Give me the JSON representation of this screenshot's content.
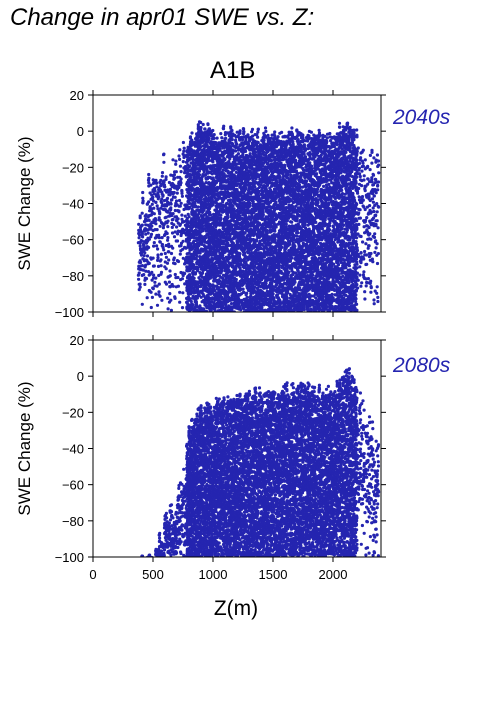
{
  "header": {
    "title": "Change in apr01 SWE vs. Z:",
    "scenario": "A1B"
  },
  "colors": {
    "points": "#2525b0",
    "label": "#2525b0"
  },
  "chart_data": [
    {
      "type": "scatter",
      "period_label": "2040s",
      "ylabel": "SWE Change (%)",
      "xlabel": "",
      "xlim": [
        0,
        2400
      ],
      "ylim": [
        -100,
        20
      ],
      "x_ticks": [
        0,
        500,
        1000,
        1500,
        2000
      ],
      "y_ticks": [
        20,
        0,
        -20,
        -40,
        -60,
        -80,
        -100
      ],
      "y_tick_labels": [
        "20",
        "0",
        "−20",
        "−40",
        "−60",
        "−80",
        "−100"
      ],
      "grid": false,
      "series": [
        {
          "values_summary": "dense cloud of points",
          "envelope": [
            {
              "x": 380,
              "ymin": -100,
              "ymax": -35
            },
            {
              "x": 500,
              "ymin": -100,
              "ymax": -15
            },
            {
              "x": 600,
              "ymin": -100,
              "ymax": -10
            },
            {
              "x": 700,
              "ymin": -100,
              "ymax": -5
            },
            {
              "x": 800,
              "ymin": -100,
              "ymax": 0
            },
            {
              "x": 900,
              "ymin": -100,
              "ymax": 8
            },
            {
              "x": 1000,
              "ymin": -100,
              "ymax": 3
            },
            {
              "x": 1200,
              "ymin": -100,
              "ymax": 3
            },
            {
              "x": 1400,
              "ymin": -100,
              "ymax": 3
            },
            {
              "x": 1600,
              "ymin": -100,
              "ymax": 3
            },
            {
              "x": 1800,
              "ymin": -100,
              "ymax": 3
            },
            {
              "x": 2000,
              "ymin": -100,
              "ymax": 3
            },
            {
              "x": 2130,
              "ymin": -100,
              "ymax": 8
            },
            {
              "x": 2250,
              "ymin": -100,
              "ymax": 0
            },
            {
              "x": 2380,
              "ymin": -95,
              "ymax": -5
            }
          ]
        }
      ]
    },
    {
      "type": "scatter",
      "period_label": "2080s",
      "ylabel": "SWE Change (%)",
      "xlabel": "Z(m)",
      "xlim": [
        0,
        2400
      ],
      "ylim": [
        -100,
        20
      ],
      "x_ticks": [
        0,
        500,
        1000,
        1500,
        2000
      ],
      "x_tick_labels": [
        "0",
        "500",
        "1000",
        "1500",
        "2000"
      ],
      "y_ticks": [
        20,
        0,
        -20,
        -40,
        -60,
        -80,
        -100
      ],
      "y_tick_labels": [
        "20",
        "0",
        "−20",
        "−40",
        "−60",
        "−80",
        "−100"
      ],
      "grid": false,
      "series": [
        {
          "values_summary": "dense cloud of points",
          "envelope": [
            {
              "x": 380,
              "ymin": -100,
              "ymax": -99
            },
            {
              "x": 500,
              "ymin": -100,
              "ymax": -98
            },
            {
              "x": 600,
              "ymin": -100,
              "ymax": -75
            },
            {
              "x": 700,
              "ymin": -100,
              "ymax": -60
            },
            {
              "x": 800,
              "ymin": -100,
              "ymax": -25
            },
            {
              "x": 900,
              "ymin": -100,
              "ymax": -15
            },
            {
              "x": 1000,
              "ymin": -100,
              "ymax": -12
            },
            {
              "x": 1200,
              "ymin": -100,
              "ymax": -8
            },
            {
              "x": 1400,
              "ymin": -100,
              "ymax": -5
            },
            {
              "x": 1600,
              "ymin": -100,
              "ymax": -3
            },
            {
              "x": 1800,
              "ymin": -100,
              "ymax": -3
            },
            {
              "x": 2000,
              "ymin": -100,
              "ymax": -5
            },
            {
              "x": 2130,
              "ymin": -100,
              "ymax": 9
            },
            {
              "x": 2250,
              "ymin": -100,
              "ymax": -10
            },
            {
              "x": 2380,
              "ymin": -100,
              "ymax": -30
            }
          ]
        }
      ]
    }
  ]
}
